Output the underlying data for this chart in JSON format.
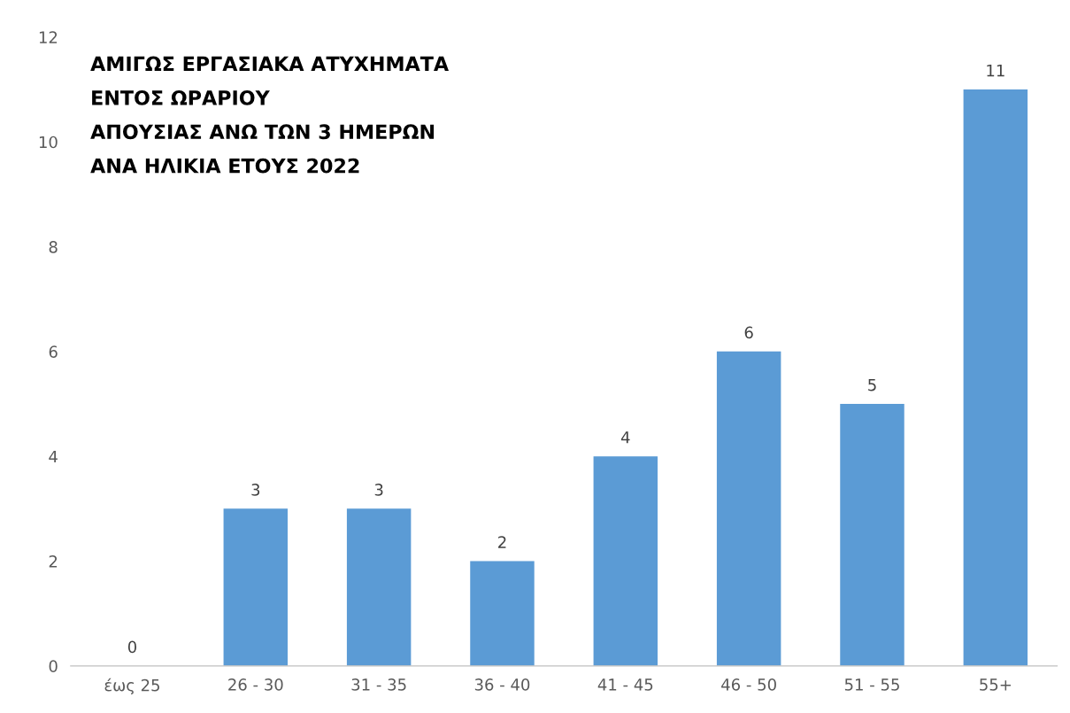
{
  "chart_data": {
    "type": "bar",
    "title": "ΑΜΙΓΩΣ ΕΡΓΑΣΙΑΚΑ ΑΤΥΧΗΜΑΤΑ\nΕΝΤΟΣ ΩΡΑΡΙΟΥ\nΑΠΟΥΣΙΑΣ ΑΝΩ ΤΩΝ 3 ΗΜΕΡΩΝ\nΑΝΑ ΗΛΙΚΙΑ ΕΤΟΥΣ 2022",
    "categories": [
      "έως 25",
      "26 - 30",
      "31 - 35",
      "36 - 40",
      "41 - 45",
      "46 - 50",
      "51 - 55",
      "55+"
    ],
    "values": [
      0,
      3,
      3,
      2,
      4,
      6,
      5,
      11
    ],
    "color": "#5b9bd5",
    "ylim": [
      0,
      12
    ],
    "yticks": [
      0,
      2,
      4,
      6,
      8,
      10,
      12
    ],
    "grid": false,
    "data_labels": true
  }
}
